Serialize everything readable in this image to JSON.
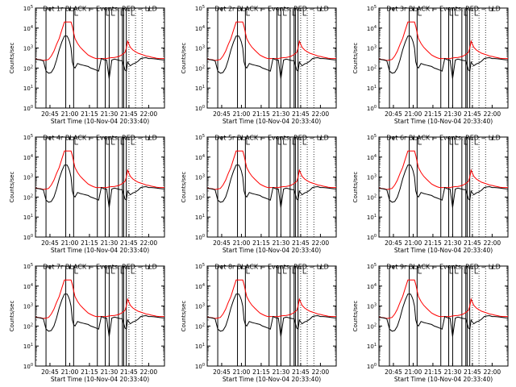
{
  "colors": {
    "events": "#000000",
    "lld": "#ff0000",
    "background": "#ffffff"
  },
  "chart_data": [
    {
      "type": "line",
      "title": "Det 1r BLACK = Events, RED = LLD"
    },
    {
      "type": "line",
      "title": "Det 2r BLACK = Events, RED = LLD"
    },
    {
      "type": "line",
      "title": "Det 3r BLACK = Events, RED = LLD"
    },
    {
      "type": "line",
      "title": "Det 4r BLACK = Events, RED = LLD"
    },
    {
      "type": "line",
      "title": "Det 5r BLACK = Events, RED = LLD"
    },
    {
      "type": "line",
      "title": "Det 6r BLACK = Events, RED = LLD"
    },
    {
      "type": "line",
      "title": "Det 7r BLACK = Events, RED = LLD"
    },
    {
      "type": "line",
      "title": "Det 8r BLACK = Events, RED = LLD"
    },
    {
      "type": "line",
      "title": "Det 9r BLACK = Events, RED = LLD"
    }
  ],
  "shared": {
    "ylabel": "Counts/sec",
    "xlabel": "Start Time (10-Nov-04 20:33:40)",
    "y_scale": "log",
    "ylim": [
      1,
      100000
    ],
    "ytick_exponents": [
      0,
      1,
      2,
      3,
      4,
      5
    ],
    "xlim": [
      "20:34:00",
      "22:12:00"
    ],
    "xticks": [
      "20:45",
      "21:00",
      "21:15",
      "21:30",
      "21:45",
      "22:00"
    ],
    "x": [
      "20:34",
      "20:36",
      "20:38",
      "20:40",
      "20:42",
      "20:44",
      "20:46",
      "20:48",
      "20:50",
      "20:52",
      "20:54",
      "20:56",
      "20:58",
      "20:59",
      "21:00",
      "21:01",
      "21:02",
      "21:03",
      "21:04",
      "21:06",
      "21:08",
      "21:10",
      "21:12",
      "21:14",
      "21:16",
      "21:18",
      "21:20",
      "21:22",
      "21:24",
      "21:26",
      "21:28",
      "21:30",
      "21:32",
      "21:34",
      "21:36",
      "21:38",
      "21:40",
      "21:42",
      "21:43",
      "21:44",
      "21:46",
      "21:48",
      "21:50",
      "21:52",
      "21:54",
      "21:56",
      "21:58",
      "22:00",
      "22:02",
      "22:04",
      "22:06",
      "22:08",
      "22:10",
      "22:12"
    ],
    "series": [
      {
        "name": "LLD",
        "color": "#ff0000",
        "values": [
          280,
          270,
          260,
          240,
          250,
          270,
          400,
          700,
          1500,
          3000,
          8000,
          20000,
          20000,
          20000,
          20000,
          20000,
          12000,
          6000,
          3000,
          1700,
          1100,
          800,
          600,
          450,
          380,
          330,
          300,
          300,
          300,
          300,
          300,
          320,
          330,
          340,
          360,
          400,
          480,
          600,
          1000,
          2200,
          1100,
          800,
          650,
          550,
          500,
          450,
          400,
          380,
          350,
          330,
          310,
          300,
          300,
          300
        ]
      },
      {
        "name": "Events",
        "color": "#000000",
        "values": [
          270,
          265,
          250,
          230,
          70,
          55,
          60,
          100,
          250,
          800,
          2000,
          4000,
          4000,
          3000,
          2000,
          1000,
          200,
          120,
          100,
          170,
          150,
          140,
          130,
          120,
          100,
          90,
          80,
          70,
          300,
          260,
          250,
          30,
          250,
          280,
          260,
          240,
          230,
          80,
          70,
          200,
          130,
          160,
          180,
          220,
          300,
          320,
          330,
          300,
          300,
          290,
          280,
          270,
          260,
          250
        ]
      }
    ],
    "vertical_lines_solid": [
      "20:42",
      "20:57",
      "21:03",
      "21:21",
      "21:27",
      "21:30",
      "21:37",
      "21:40",
      "21:41",
      "21:43"
    ],
    "vertical_lines_dotted": [
      "21:45",
      "21:50",
      "21:55"
    ],
    "flag_marks": [
      "21:04",
      "21:28",
      "21:32",
      "21:39",
      "21:47"
    ]
  }
}
